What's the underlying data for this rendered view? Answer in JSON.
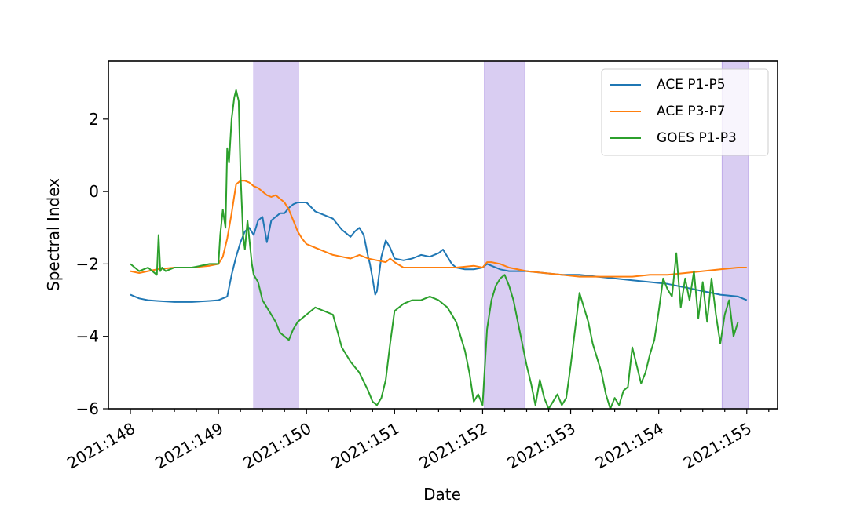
{
  "chart_data": {
    "type": "line",
    "title": "",
    "xlabel": "Date",
    "ylabel": "Spectral Index",
    "xlim": [
      147.75,
      155.35
    ],
    "ylim": [
      -6,
      3.6
    ],
    "x_ticks": [
      148,
      149,
      150,
      151,
      152,
      153,
      154,
      155
    ],
    "x_tick_labels": [
      "2021:148",
      "2021:149",
      "2021:150",
      "2021:151",
      "2021:152",
      "2021:153",
      "2021:154",
      "2021:155"
    ],
    "y_ticks": [
      -6,
      -4,
      -2,
      0,
      2
    ],
    "y_tick_labels": [
      "−6",
      "−4",
      "−2",
      "0",
      "2"
    ],
    "grid": false,
    "legend_position": "top-right",
    "shaded_regions": {
      "color": "#9370db",
      "ranges": [
        [
          149.4,
          149.91
        ],
        [
          152.02,
          152.48
        ],
        [
          154.72,
          155.02
        ]
      ]
    },
    "series": [
      {
        "name": "ACE P1-P5",
        "color": "#1f77b4",
        "x": [
          148.0,
          148.1,
          148.2,
          148.3,
          148.5,
          148.7,
          148.9,
          149.0,
          149.1,
          149.15,
          149.2,
          149.25,
          149.3,
          149.35,
          149.4,
          149.45,
          149.5,
          149.55,
          149.6,
          149.65,
          149.7,
          149.75,
          149.8,
          149.85,
          149.9,
          150.0,
          150.1,
          150.2,
          150.3,
          150.4,
          150.5,
          150.55,
          150.6,
          150.65,
          150.7,
          150.72,
          150.75,
          150.78,
          150.8,
          150.85,
          150.9,
          150.95,
          151.0,
          151.1,
          151.2,
          151.3,
          151.4,
          151.5,
          151.55,
          151.6,
          151.65,
          151.7,
          151.8,
          151.9,
          152.0,
          152.05,
          152.1,
          152.2,
          152.3,
          152.5,
          152.7,
          152.9,
          153.1,
          153.3,
          153.5,
          153.7,
          153.9,
          154.1,
          154.3,
          154.5,
          154.7,
          154.9,
          155.0
        ],
        "y": [
          -2.85,
          -2.95,
          -3.0,
          -3.02,
          -3.05,
          -3.05,
          -3.02,
          -3.0,
          -2.9,
          -2.3,
          -1.8,
          -1.4,
          -1.1,
          -1.0,
          -1.2,
          -0.8,
          -0.7,
          -1.4,
          -0.8,
          -0.7,
          -0.6,
          -0.6,
          -0.45,
          -0.35,
          -0.3,
          -0.3,
          -0.55,
          -0.65,
          -0.75,
          -1.05,
          -1.25,
          -1.1,
          -1.0,
          -1.2,
          -1.8,
          -2.0,
          -2.4,
          -2.85,
          -2.75,
          -1.8,
          -1.35,
          -1.55,
          -1.85,
          -1.9,
          -1.85,
          -1.75,
          -1.8,
          -1.7,
          -1.6,
          -1.8,
          -2.0,
          -2.1,
          -2.15,
          -2.15,
          -2.1,
          -2.0,
          -2.05,
          -2.15,
          -2.2,
          -2.2,
          -2.25,
          -2.3,
          -2.3,
          -2.35,
          -2.4,
          -2.45,
          -2.5,
          -2.55,
          -2.65,
          -2.75,
          -2.85,
          -2.9,
          -3.0
        ]
      },
      {
        "name": "ACE P3-P7",
        "color": "#ff7f0e",
        "x": [
          148.0,
          148.1,
          148.2,
          148.3,
          148.5,
          148.7,
          148.9,
          149.0,
          149.05,
          149.1,
          149.15,
          149.2,
          149.25,
          149.3,
          149.35,
          149.4,
          149.45,
          149.5,
          149.55,
          149.6,
          149.65,
          149.7,
          149.75,
          149.8,
          149.85,
          149.9,
          149.95,
          150.0,
          150.05,
          150.1,
          150.2,
          150.3,
          150.4,
          150.5,
          150.6,
          150.7,
          150.8,
          150.9,
          150.95,
          151.0,
          151.1,
          151.3,
          151.5,
          151.7,
          151.9,
          152.0,
          152.05,
          152.1,
          152.2,
          152.3,
          152.5,
          152.7,
          152.9,
          153.1,
          153.3,
          153.5,
          153.7,
          153.9,
          154.1,
          154.3,
          154.5,
          154.7,
          154.9,
          155.0
        ],
        "y": [
          -2.2,
          -2.25,
          -2.2,
          -2.15,
          -2.1,
          -2.1,
          -2.05,
          -2.0,
          -1.8,
          -1.3,
          -0.6,
          0.2,
          0.3,
          0.3,
          0.25,
          0.15,
          0.1,
          0.0,
          -0.1,
          -0.15,
          -0.1,
          -0.2,
          -0.3,
          -0.5,
          -0.8,
          -1.1,
          -1.3,
          -1.45,
          -1.5,
          -1.55,
          -1.65,
          -1.75,
          -1.8,
          -1.85,
          -1.75,
          -1.85,
          -1.9,
          -1.95,
          -1.85,
          -1.95,
          -2.1,
          -2.1,
          -2.1,
          -2.1,
          -2.05,
          -2.1,
          -1.95,
          -1.95,
          -2.0,
          -2.1,
          -2.2,
          -2.25,
          -2.3,
          -2.35,
          -2.35,
          -2.35,
          -2.35,
          -2.3,
          -2.3,
          -2.25,
          -2.2,
          -2.15,
          -2.1,
          -2.1
        ]
      },
      {
        "name": "GOES P1-P3",
        "color": "#2ca02c",
        "x": [
          148.0,
          148.1,
          148.2,
          148.3,
          148.32,
          148.34,
          148.36,
          148.4,
          148.5,
          148.7,
          148.9,
          149.0,
          149.02,
          149.05,
          149.08,
          149.1,
          149.12,
          149.15,
          149.18,
          149.2,
          149.23,
          149.25,
          149.28,
          149.3,
          149.33,
          149.35,
          149.38,
          149.4,
          149.45,
          149.5,
          149.55,
          149.6,
          149.65,
          149.7,
          149.75,
          149.8,
          149.85,
          149.9,
          149.95,
          150.0,
          150.1,
          150.2,
          150.3,
          150.4,
          150.5,
          150.6,
          150.7,
          150.75,
          150.8,
          150.85,
          150.9,
          150.95,
          151.0,
          151.1,
          151.2,
          151.3,
          151.4,
          151.5,
          151.6,
          151.7,
          151.75,
          151.8,
          151.85,
          151.9,
          151.95,
          152.0,
          152.05,
          152.1,
          152.15,
          152.2,
          152.25,
          152.3,
          152.35,
          152.4,
          152.45,
          152.5,
          152.55,
          152.6,
          152.65,
          152.7,
          152.75,
          152.8,
          152.85,
          152.9,
          152.95,
          153.0,
          153.05,
          153.1,
          153.15,
          153.2,
          153.25,
          153.3,
          153.35,
          153.4,
          153.45,
          153.5,
          153.55,
          153.6,
          153.65,
          153.7,
          153.75,
          153.8,
          153.85,
          153.9,
          153.95,
          154.0,
          154.05,
          154.1,
          154.15,
          154.2,
          154.25,
          154.3,
          154.35,
          154.4,
          154.45,
          154.5,
          154.55,
          154.6,
          154.65,
          154.7,
          154.75,
          154.8,
          154.85,
          154.9
        ],
        "y": [
          -2.0,
          -2.2,
          -2.1,
          -2.3,
          -1.2,
          -2.2,
          -2.1,
          -2.2,
          -2.1,
          -2.1,
          -2.0,
          -2.0,
          -1.2,
          -0.5,
          -1.0,
          1.2,
          0.8,
          2.0,
          2.6,
          2.8,
          2.5,
          0.5,
          -1.2,
          -1.6,
          -0.8,
          -1.3,
          -2.0,
          -2.3,
          -2.5,
          -3.0,
          -3.2,
          -3.4,
          -3.6,
          -3.9,
          -4.0,
          -4.1,
          -3.8,
          -3.6,
          -3.5,
          -3.4,
          -3.2,
          -3.3,
          -3.4,
          -4.3,
          -4.7,
          -5.0,
          -5.5,
          -5.8,
          -5.9,
          -5.7,
          -5.2,
          -4.2,
          -3.3,
          -3.1,
          -3.0,
          -3.0,
          -2.9,
          -3.0,
          -3.2,
          -3.6,
          -4.0,
          -4.4,
          -5.0,
          -5.8,
          -5.6,
          -5.9,
          -3.8,
          -3.0,
          -2.6,
          -2.4,
          -2.3,
          -2.6,
          -3.0,
          -3.6,
          -4.2,
          -4.8,
          -5.3,
          -5.9,
          -5.2,
          -5.7,
          -6.0,
          -5.8,
          -5.6,
          -5.9,
          -5.7,
          -4.8,
          -3.8,
          -2.8,
          -3.2,
          -3.6,
          -4.2,
          -4.6,
          -5.0,
          -5.6,
          -6.0,
          -5.7,
          -5.9,
          -5.5,
          -5.4,
          -4.3,
          -4.8,
          -5.3,
          -5.0,
          -4.5,
          -4.1,
          -3.3,
          -2.4,
          -2.7,
          -2.9,
          -1.7,
          -3.2,
          -2.4,
          -3.0,
          -2.2,
          -3.5,
          -2.5,
          -3.6,
          -2.4,
          -3.4,
          -4.2,
          -3.4,
          -3.0,
          -4.0,
          -3.6
        ]
      }
    ]
  }
}
